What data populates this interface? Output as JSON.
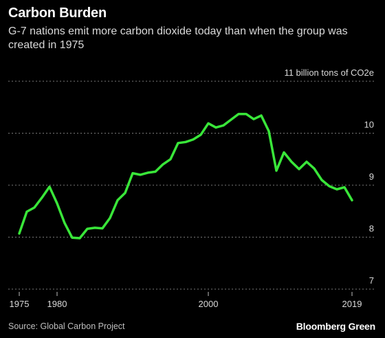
{
  "header": {
    "title": "Carbon Burden",
    "subtitle": "G-7 nations emit more carbon dioxide today than when the group was created in 1975"
  },
  "footer": {
    "source": "Source: Global Carbon Project",
    "brand": "Bloomberg Green"
  },
  "colors": {
    "background": "#000000",
    "line": "#39e639",
    "grid": "#7a7a7a",
    "text": "#d9d9d9"
  },
  "chart_data": {
    "type": "line",
    "title": "Carbon Burden",
    "ylabel": "",
    "xlabel": "",
    "ylim": [
      7,
      11
    ],
    "xlim": [
      1975,
      2019
    ],
    "grid": true,
    "y_ticks": [
      {
        "value": 11,
        "label": "11 billion tons of CO2e"
      },
      {
        "value": 10,
        "label": "10"
      },
      {
        "value": 9,
        "label": "9"
      },
      {
        "value": 8,
        "label": "8"
      },
      {
        "value": 7,
        "label": "7"
      }
    ],
    "x_ticks": [
      {
        "value": 1975,
        "label": "1975"
      },
      {
        "value": 1980,
        "label": "1980"
      },
      {
        "value": 2000,
        "label": "2000"
      },
      {
        "value": 2019,
        "label": "2019"
      }
    ],
    "series": [
      {
        "x": [
          1975,
          1976,
          1977,
          1978,
          1979,
          1980,
          1981,
          1982,
          1983,
          1984,
          1985,
          1986,
          1987,
          1988,
          1989,
          1990,
          1991,
          1992,
          1993,
          1994,
          1995,
          1996,
          1997,
          1998,
          1999,
          2000,
          2001,
          2002,
          2003,
          2004,
          2005,
          2006,
          2007,
          2008,
          2009,
          2010,
          2011,
          2012,
          2013,
          2014,
          2015,
          2016,
          2017,
          2018,
          2019
        ],
        "values": [
          8.07,
          8.49,
          8.57,
          8.76,
          8.97,
          8.65,
          8.27,
          7.99,
          7.98,
          8.16,
          8.18,
          8.17,
          8.37,
          8.71,
          8.85,
          9.23,
          9.2,
          9.24,
          9.26,
          9.4,
          9.5,
          9.81,
          9.83,
          9.88,
          9.97,
          10.19,
          10.11,
          10.15,
          10.26,
          10.37,
          10.37,
          10.27,
          10.34,
          10.04,
          9.28,
          9.63,
          9.45,
          9.31,
          9.45,
          9.32,
          9.1,
          8.98,
          8.92,
          8.96,
          8.71
        ]
      }
    ]
  }
}
